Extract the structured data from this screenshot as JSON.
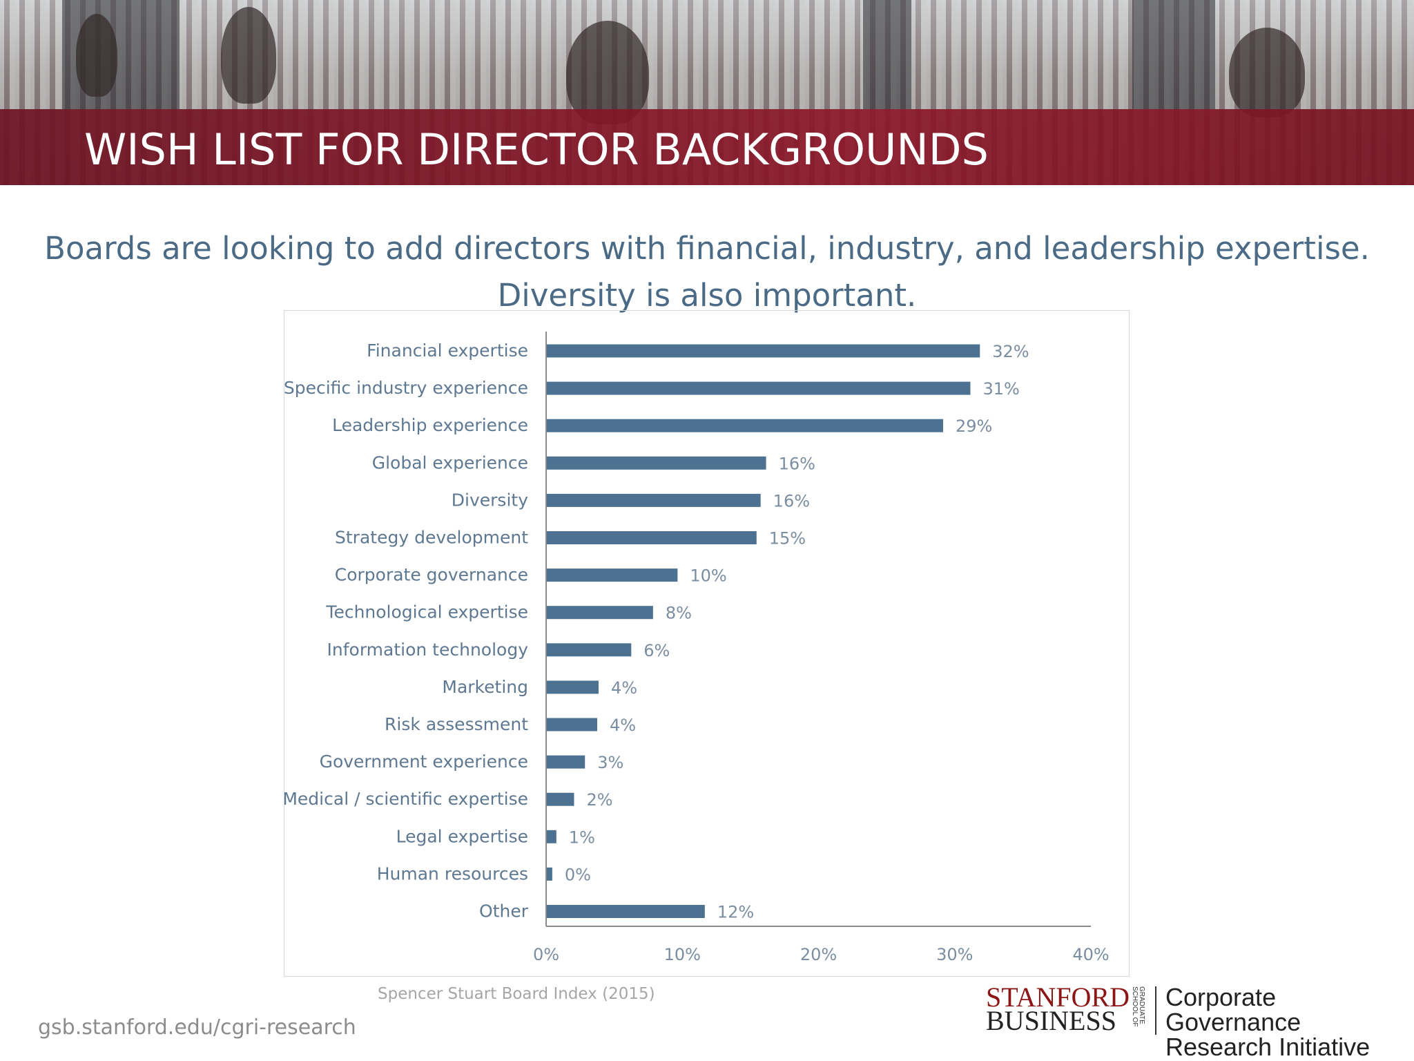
{
  "header": {
    "title": "WISH LIST FOR DIRECTOR BACKGROUNDS"
  },
  "subtitle": {
    "line1": "Boards are looking to add directors with financial, industry, and leadership expertise.",
    "line2": "Diversity is also important."
  },
  "chart_data": {
    "type": "bar",
    "orientation": "horizontal",
    "categories": [
      "Financial expertise",
      "Specific industry experience",
      "Leadership experience",
      "Global experience",
      "Diversity",
      "Strategy development",
      "Corporate governance",
      "Technological expertise",
      "Information technology",
      "Marketing",
      "Risk assessment",
      "Government experience",
      "Medical / scientific expertise",
      "Legal expertise",
      "Human resources",
      "Other"
    ],
    "values": [
      32,
      31,
      29,
      16,
      16,
      15,
      10,
      8,
      6,
      4,
      4,
      3,
      2,
      1,
      0,
      12
    ],
    "bar_lengths": [
      31.8,
      31.1,
      29.1,
      16.1,
      15.7,
      15.4,
      9.6,
      7.8,
      6.2,
      3.8,
      3.7,
      2.8,
      2.0,
      0.7,
      0.4,
      11.6
    ],
    "data_labels": [
      "32%",
      "31%",
      "29%",
      "16%",
      "16%",
      "15%",
      "10%",
      "8%",
      "6%",
      "4%",
      "4%",
      "3%",
      "2%",
      "1%",
      "0%",
      "12%"
    ],
    "xlim": [
      0,
      40
    ],
    "xticks": [
      0,
      10,
      20,
      30,
      40
    ],
    "xtick_labels": [
      "0%",
      "10%",
      "20%",
      "30%",
      "40%"
    ],
    "xlabel": "",
    "ylabel": "",
    "grid": false,
    "bar_color": "#4d7190"
  },
  "footer": {
    "source": "Spencer Stuart Board Index (2015)",
    "url": "gsb.stanford.edu/cgri-research",
    "logo_stanford": "STANFORD",
    "logo_business": "BUSINESS",
    "logo_gsb": "GRADUATE SCHOOL OF",
    "logo_cgri_line1": "Corporate Governance",
    "logo_cgri_line2": "Research Initiative"
  }
}
